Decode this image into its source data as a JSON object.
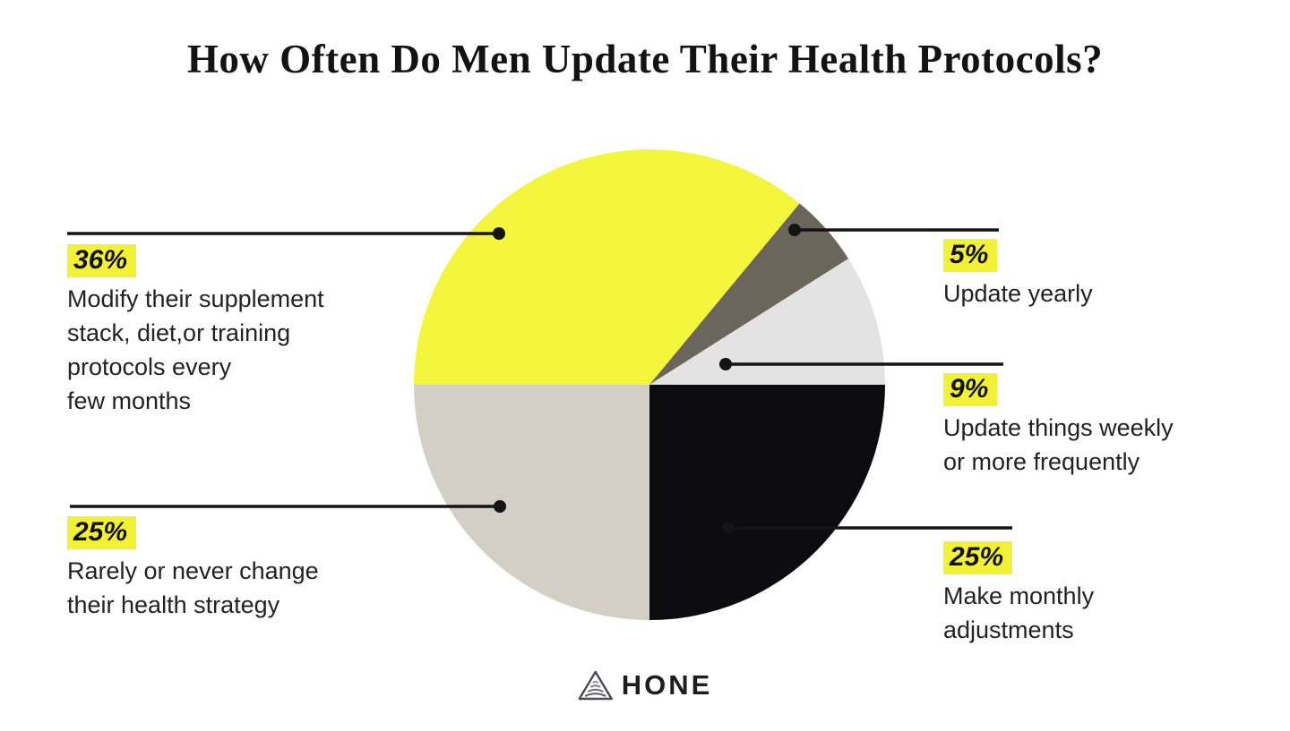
{
  "title": "How Often Do Men Update Their Health Protocols?",
  "brand": {
    "name": "HONE"
  },
  "colors": {
    "highlight": "#f2f135",
    "line": "#141414",
    "background": "#ffffff"
  },
  "chart_data": {
    "type": "pie",
    "title": "How Often Do Men Update Their Health Protocols?",
    "start_angle_clockwise_from_top_deg": 270,
    "direction": "clockwise",
    "legend_position": "callouts",
    "slices": [
      {
        "label": "Modify their supplement stack, diet,or training protocols every few months",
        "value": 36,
        "color": "#f4f53d"
      },
      {
        "label": "Update yearly",
        "value": 5,
        "color": "#6a665b"
      },
      {
        "label": "Update things weekly or more frequently",
        "value": 9,
        "color": "#e4e3e4"
      },
      {
        "label": "Make monthly adjustments",
        "value": 25,
        "color": "#0c0c0e"
      },
      {
        "label": "Rarely or never change their health strategy",
        "value": 25,
        "color": "#d3cfc6"
      }
    ]
  },
  "callouts": {
    "left": [
      {
        "pct": "36%",
        "text": "Modify their supplement\nstack, diet,or training\nprotocols every\nfew months"
      },
      {
        "pct": "25%",
        "text": "Rarely or never change\ntheir health strategy"
      }
    ],
    "right": [
      {
        "pct": "5%",
        "text": "Update yearly"
      },
      {
        "pct": "9%",
        "text": "Update things weekly\nor more frequently"
      },
      {
        "pct": "25%",
        "text": "Make monthly\nadjustments"
      }
    ]
  }
}
